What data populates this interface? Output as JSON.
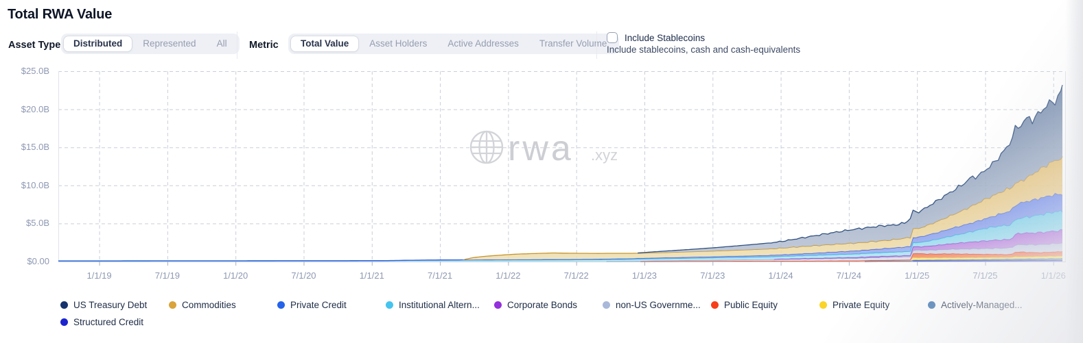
{
  "header": {
    "title": "Total RWA Value"
  },
  "controls": {
    "asset_type": {
      "label": "Asset Type",
      "options": [
        "Distributed",
        "Represented",
        "All"
      ],
      "selected": "Distributed"
    },
    "metric": {
      "label": "Metric",
      "options": [
        "Total Value",
        "Asset Holders",
        "Active Addresses",
        "Transfer Volume"
      ],
      "selected": "Total Value"
    },
    "stablecoins_checkbox": {
      "label": "Include Stablecoins",
      "description": "Include stablecoins, cash and cash-equivalents",
      "checked": false
    }
  },
  "watermark": {
    "brand": "rwa",
    "tld": ".xyz",
    "icon": "globe-icon",
    "color": "#cdced3"
  },
  "chart_data": {
    "type": "area",
    "stacked": true,
    "title": "Total RWA Value",
    "xlabel": "",
    "ylabel": "",
    "ylim": [
      0,
      25
    ],
    "grid": "dashed",
    "legend_position": "bottom",
    "y_tick_labels": [
      "$25.0B",
      "$20.0B",
      "$15.0B",
      "$10.0B",
      "$5.0B",
      "$0.00"
    ],
    "y_tick_values": [
      25,
      20,
      15,
      10,
      5,
      0
    ],
    "x_tick_labels": [
      "1/1/19",
      "7/1/19",
      "1/1/20",
      "7/1/20",
      "1/1/21",
      "7/1/21",
      "1/1/22",
      "7/1/22",
      "1/1/23",
      "7/1/23",
      "1/1/24",
      "7/1/24",
      "1/1/25",
      "7/1/25",
      "1/1/26"
    ],
    "x_unit": "months since 2018-10",
    "x_tick_months": [
      3,
      9,
      15,
      21,
      27,
      33,
      39,
      45,
      51,
      57,
      63,
      69,
      75,
      81,
      87
    ],
    "x_domain": [
      -0.6,
      87.8
    ],
    "value_unit": "USD billions",
    "series": [
      {
        "name": "US Treasury Debt",
        "dot_color": "#16336e",
        "stroke": "#31507f",
        "fill_top": "#647da3",
        "fill_bottom": "#bac4d5",
        "points": [
          [
            50,
            0
          ],
          [
            51,
            0.08
          ],
          [
            53,
            0.2
          ],
          [
            55,
            0.3
          ],
          [
            57,
            0.42
          ],
          [
            59,
            0.55
          ],
          [
            61,
            0.7
          ],
          [
            63,
            0.85
          ],
          [
            64,
            1.0
          ],
          [
            65,
            1.15
          ],
          [
            66,
            1.3
          ],
          [
            67,
            1.45
          ],
          [
            68,
            1.6
          ],
          [
            69,
            1.75
          ],
          [
            70,
            1.85
          ],
          [
            71,
            1.9
          ],
          [
            72,
            1.95
          ],
          [
            73,
            1.9
          ],
          [
            74,
            2.0
          ],
          [
            74.5,
            2.6
          ],
          [
            74.8,
            2.15
          ],
          [
            75.5,
            2.25
          ],
          [
            76,
            2.45
          ],
          [
            77,
            2.8
          ],
          [
            78,
            3.1
          ],
          [
            79,
            3.4
          ],
          [
            79.8,
            3.8
          ],
          [
            80.3,
            3.5
          ],
          [
            81,
            3.8
          ],
          [
            81.8,
            4.3
          ],
          [
            82.5,
            5.0
          ],
          [
            83,
            5.6
          ],
          [
            83.4,
            6.6
          ],
          [
            83.8,
            7.3
          ],
          [
            84.3,
            7.5
          ],
          [
            84.8,
            7.8
          ],
          [
            85.2,
            7.1
          ],
          [
            85.6,
            7.3
          ],
          [
            86,
            7.6
          ],
          [
            86.5,
            7.9
          ],
          [
            87,
            7.8
          ],
          [
            87.4,
            8.1
          ],
          [
            87.8,
            9.0
          ]
        ]
      },
      {
        "name": "Commodities",
        "dot_color": "#d9a43c",
        "stroke": "#c6932b",
        "fill_top": "#e3b557",
        "fill_bottom": "#eedfb2",
        "points": [
          [
            35,
            0
          ],
          [
            36,
            0.3
          ],
          [
            37,
            0.45
          ],
          [
            38,
            0.55
          ],
          [
            39,
            0.65
          ],
          [
            40,
            0.72
          ],
          [
            41,
            0.76
          ],
          [
            42,
            0.8
          ],
          [
            43,
            0.84
          ],
          [
            44,
            0.8
          ],
          [
            45,
            0.78
          ],
          [
            47,
            0.74
          ],
          [
            49,
            0.7
          ],
          [
            51,
            0.66
          ],
          [
            53,
            0.68
          ],
          [
            55,
            0.71
          ],
          [
            57,
            0.74
          ],
          [
            59,
            0.78
          ],
          [
            61,
            0.82
          ],
          [
            63,
            0.88
          ],
          [
            65,
            0.95
          ],
          [
            67,
            1.0
          ],
          [
            69,
            1.02
          ],
          [
            71,
            1.05
          ],
          [
            73,
            1.08
          ],
          [
            74.5,
            1.2
          ],
          [
            75,
            1.1
          ],
          [
            76,
            1.3
          ],
          [
            77,
            1.5
          ],
          [
            78,
            1.7
          ],
          [
            79,
            1.95
          ],
          [
            80,
            2.25
          ],
          [
            81,
            2.55
          ],
          [
            82,
            2.75
          ],
          [
            83,
            3.0
          ],
          [
            84,
            2.8
          ],
          [
            84.5,
            3.0
          ],
          [
            85,
            3.3
          ],
          [
            86,
            3.9
          ],
          [
            87,
            4.4
          ],
          [
            87.8,
            4.7
          ]
        ]
      },
      {
        "name": "Private Credit",
        "dot_color": "#2563eb",
        "stroke": "#2f5ae0",
        "fill_top": "#5374e8",
        "fill_bottom": "#9fb2f0",
        "points": [
          [
            30,
            0.02
          ],
          [
            39,
            0.05
          ],
          [
            51,
            0.1
          ],
          [
            57,
            0.15
          ],
          [
            63,
            0.2
          ],
          [
            66,
            0.28
          ],
          [
            69,
            0.38
          ],
          [
            71,
            0.45
          ],
          [
            73,
            0.55
          ],
          [
            74.5,
            0.65
          ],
          [
            75.5,
            0.75
          ],
          [
            76.5,
            0.85
          ],
          [
            77.5,
            0.95
          ],
          [
            78.5,
            1.05
          ],
          [
            79.5,
            1.12
          ],
          [
            80.5,
            1.2
          ],
          [
            81.5,
            1.35
          ],
          [
            82.5,
            1.65
          ],
          [
            83.5,
            1.9
          ],
          [
            84.5,
            2.05
          ],
          [
            85.5,
            2.15
          ],
          [
            86.5,
            2.25
          ],
          [
            87.8,
            2.3
          ]
        ]
      },
      {
        "name": "Institutional Altern...",
        "dot_color": "#45c4ee",
        "stroke": "#2eb6e0",
        "fill_top": "#55c6e8",
        "fill_bottom": "#b4e5f2",
        "points": [
          [
            -0.6,
            0.07
          ],
          [
            12,
            0.08
          ],
          [
            24,
            0.09
          ],
          [
            28,
            0.1
          ],
          [
            30,
            0.14
          ],
          [
            32,
            0.17
          ],
          [
            36,
            0.19
          ],
          [
            39,
            0.21
          ],
          [
            45,
            0.23
          ],
          [
            51,
            0.26
          ],
          [
            57,
            0.3
          ],
          [
            63,
            0.35
          ],
          [
            66,
            0.4
          ],
          [
            69,
            0.45
          ],
          [
            72,
            0.5
          ],
          [
            74,
            0.53
          ],
          [
            75,
            0.55
          ],
          [
            76,
            0.68
          ],
          [
            77,
            0.82
          ],
          [
            78,
            1.0
          ],
          [
            79,
            1.18
          ],
          [
            80,
            1.4
          ],
          [
            81,
            1.65
          ],
          [
            82,
            1.78
          ],
          [
            83,
            1.88
          ],
          [
            84,
            1.95
          ],
          [
            85,
            2.15
          ],
          [
            86,
            2.35
          ],
          [
            87,
            2.5
          ],
          [
            87.8,
            2.5
          ]
        ]
      },
      {
        "name": "Corporate Bonds",
        "dot_color": "#9430dc",
        "stroke": "#8c35cc",
        "fill_top": "#a053d6",
        "fill_bottom": "#cfa9e8",
        "points": [
          [
            62,
            0
          ],
          [
            63,
            0.04
          ],
          [
            66,
            0.07
          ],
          [
            69,
            0.1
          ],
          [
            72,
            0.13
          ],
          [
            74.4,
            0.15
          ],
          [
            74.6,
            0.45
          ],
          [
            75.2,
            0.42
          ],
          [
            76,
            0.52
          ],
          [
            77,
            0.62
          ],
          [
            78,
            0.72
          ],
          [
            79,
            0.82
          ],
          [
            80,
            0.92
          ],
          [
            81,
            1.0
          ],
          [
            82,
            1.08
          ],
          [
            83.3,
            1.12
          ],
          [
            83.6,
            1.4
          ],
          [
            84,
            1.5
          ],
          [
            85,
            1.55
          ],
          [
            86,
            1.6
          ],
          [
            87,
            1.65
          ],
          [
            87.8,
            1.7
          ]
        ]
      },
      {
        "name": "non-US Governme...",
        "dot_color": "#a9b8d9",
        "stroke": "#9aabce",
        "fill_top": "#b7c2dc",
        "fill_bottom": "#dde3ef",
        "points": [
          [
            47,
            0
          ],
          [
            48,
            0.03
          ],
          [
            51,
            0.06
          ],
          [
            54,
            0.1
          ],
          [
            57,
            0.14
          ],
          [
            60,
            0.18
          ],
          [
            63,
            0.22
          ],
          [
            66,
            0.27
          ],
          [
            69,
            0.32
          ],
          [
            72,
            0.38
          ],
          [
            74,
            0.42
          ],
          [
            75,
            0.45
          ],
          [
            76,
            0.5
          ],
          [
            77,
            0.55
          ],
          [
            78,
            0.6
          ],
          [
            79,
            0.65
          ],
          [
            80,
            0.7
          ],
          [
            81,
            0.75
          ],
          [
            82,
            0.8
          ],
          [
            83,
            0.85
          ],
          [
            84,
            0.95
          ],
          [
            85,
            1.0
          ],
          [
            86,
            1.05
          ],
          [
            87.8,
            1.1
          ]
        ]
      },
      {
        "name": "Public Equity",
        "dot_color": "#f63e1a",
        "stroke": "#ee3d16",
        "fill_top": "#f2633a",
        "fill_bottom": "#f7a183",
        "points": [
          [
            50,
            0
          ],
          [
            51,
            0.03
          ],
          [
            57,
            0.05
          ],
          [
            63,
            0.08
          ],
          [
            69,
            0.11
          ],
          [
            73,
            0.13
          ],
          [
            74.4,
            0.14
          ],
          [
            74.6,
            0.55
          ],
          [
            75.5,
            0.5
          ],
          [
            76.5,
            0.48
          ],
          [
            78,
            0.5
          ],
          [
            79.5,
            0.46
          ],
          [
            81,
            0.42
          ],
          [
            82.5,
            0.38
          ],
          [
            83.3,
            0.36
          ],
          [
            83.6,
            0.58
          ],
          [
            84.2,
            0.62
          ],
          [
            85,
            0.55
          ],
          [
            86,
            0.5
          ],
          [
            87,
            0.55
          ],
          [
            87.8,
            0.6
          ]
        ]
      },
      {
        "name": "Private Equity",
        "dot_color": "#fad428",
        "stroke": "#ecc722",
        "fill_top": "#f7d83d",
        "fill_bottom": "#fdf0a8",
        "points": [
          [
            74.4,
            0
          ],
          [
            74.6,
            0.35
          ],
          [
            76,
            0.32
          ],
          [
            78,
            0.3
          ],
          [
            80,
            0.28
          ],
          [
            82,
            0.26
          ],
          [
            83.3,
            0.25
          ],
          [
            83.6,
            0.32
          ],
          [
            85,
            0.3
          ],
          [
            86,
            0.31
          ],
          [
            87,
            0.32
          ],
          [
            87.8,
            0.33
          ]
        ]
      },
      {
        "name": "Actively-Managed...",
        "dot_color": "#3a72ad",
        "stroke": "#3a6ea6",
        "fill_top": "#4f7fb0",
        "fill_bottom": "#8aa8c6",
        "points": [
          [
            70,
            0
          ],
          [
            71,
            0.04
          ],
          [
            73,
            0.07
          ],
          [
            75,
            0.09
          ],
          [
            77,
            0.11
          ],
          [
            79,
            0.13
          ],
          [
            81,
            0.16
          ],
          [
            83,
            0.19
          ],
          [
            85,
            0.22
          ],
          [
            87,
            0.25
          ],
          [
            87.8,
            0.25
          ]
        ]
      },
      {
        "name": "Structured Credit",
        "dot_color": "#1c24cf",
        "stroke": "#262dc4",
        "fill_top": "#3d43d4",
        "fill_bottom": "#7a7ee0",
        "points": [
          [
            74.4,
            0
          ],
          [
            74.6,
            0.1
          ],
          [
            77,
            0.11
          ],
          [
            80,
            0.12
          ],
          [
            83,
            0.13
          ],
          [
            85,
            0.14
          ],
          [
            87.8,
            0.15
          ]
        ]
      }
    ],
    "legend": [
      "US Treasury Debt",
      "Commodities",
      "Private Credit",
      "Institutional Altern...",
      "Corporate Bonds",
      "non-US Governme...",
      "Public Equity",
      "Private Equity",
      "Actively-Managed...",
      "Structured Credit"
    ],
    "notes": "Stacked area; first legend series renders as top band, last as bottom band. Totals: ~$0.1B (2019-2020), ~$0.9B (1/1/22), ~$1.2B (1/1/23), ~$2.7B (1/1/24), ~$6.5B (1/1/25), ~$12B (7/1/25), ~$23B final (Jan 2026)."
  }
}
